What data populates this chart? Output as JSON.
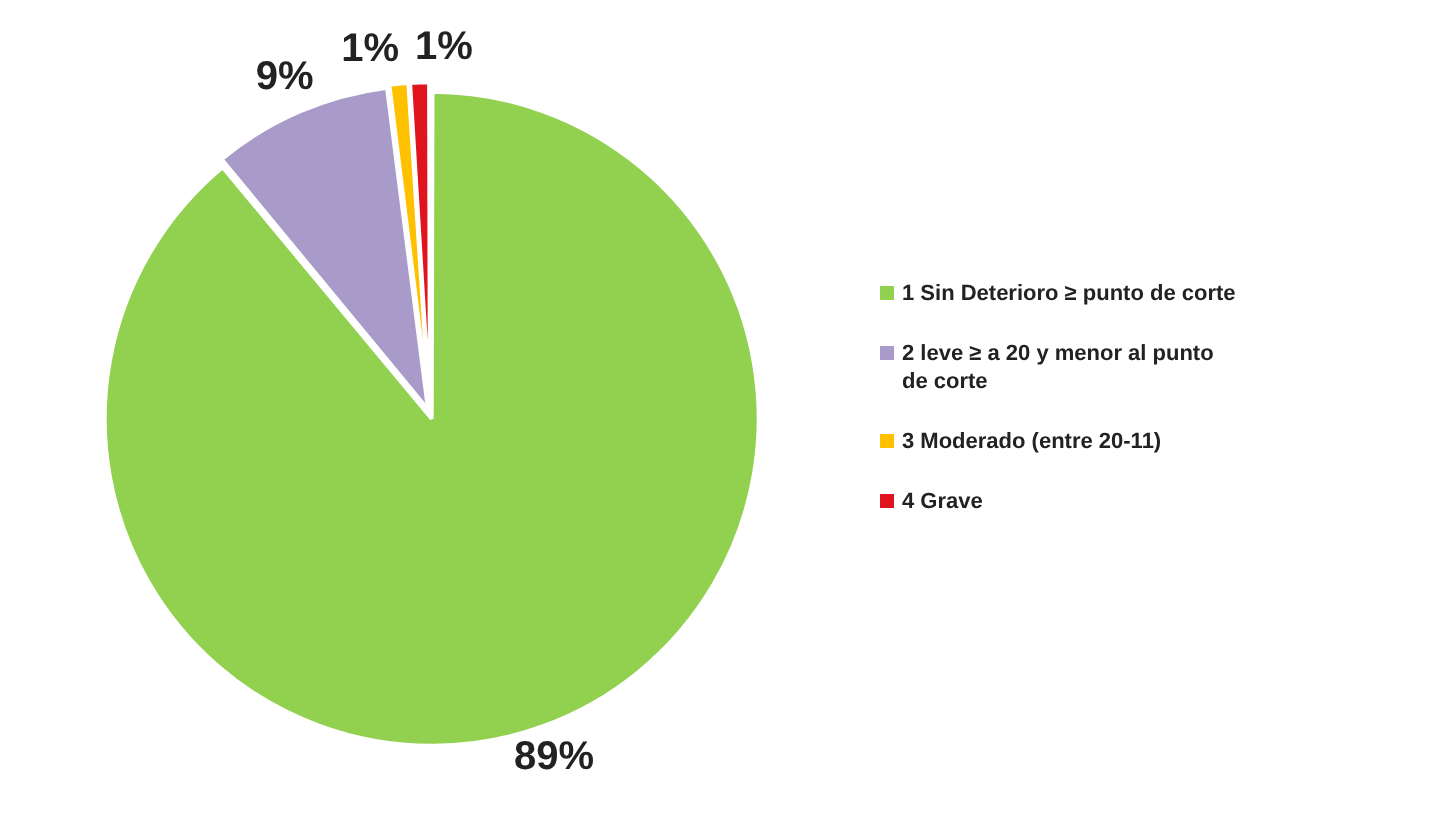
{
  "chart_data": {
    "type": "pie",
    "categories": [
      "1 Sin Deterioro ≥ punto de corte",
      "2 leve ≥  a 20 y menor al punto de corte",
      "3 Moderado (entre 20-11)",
      "4 Grave"
    ],
    "values": [
      89,
      9,
      1,
      1
    ],
    "colors": [
      "#92d050",
      "#a99bc9",
      "#ffc000",
      "#e0141e"
    ],
    "value_labels": [
      "89%",
      "9%",
      "1%",
      "1%"
    ],
    "legend": "right"
  }
}
